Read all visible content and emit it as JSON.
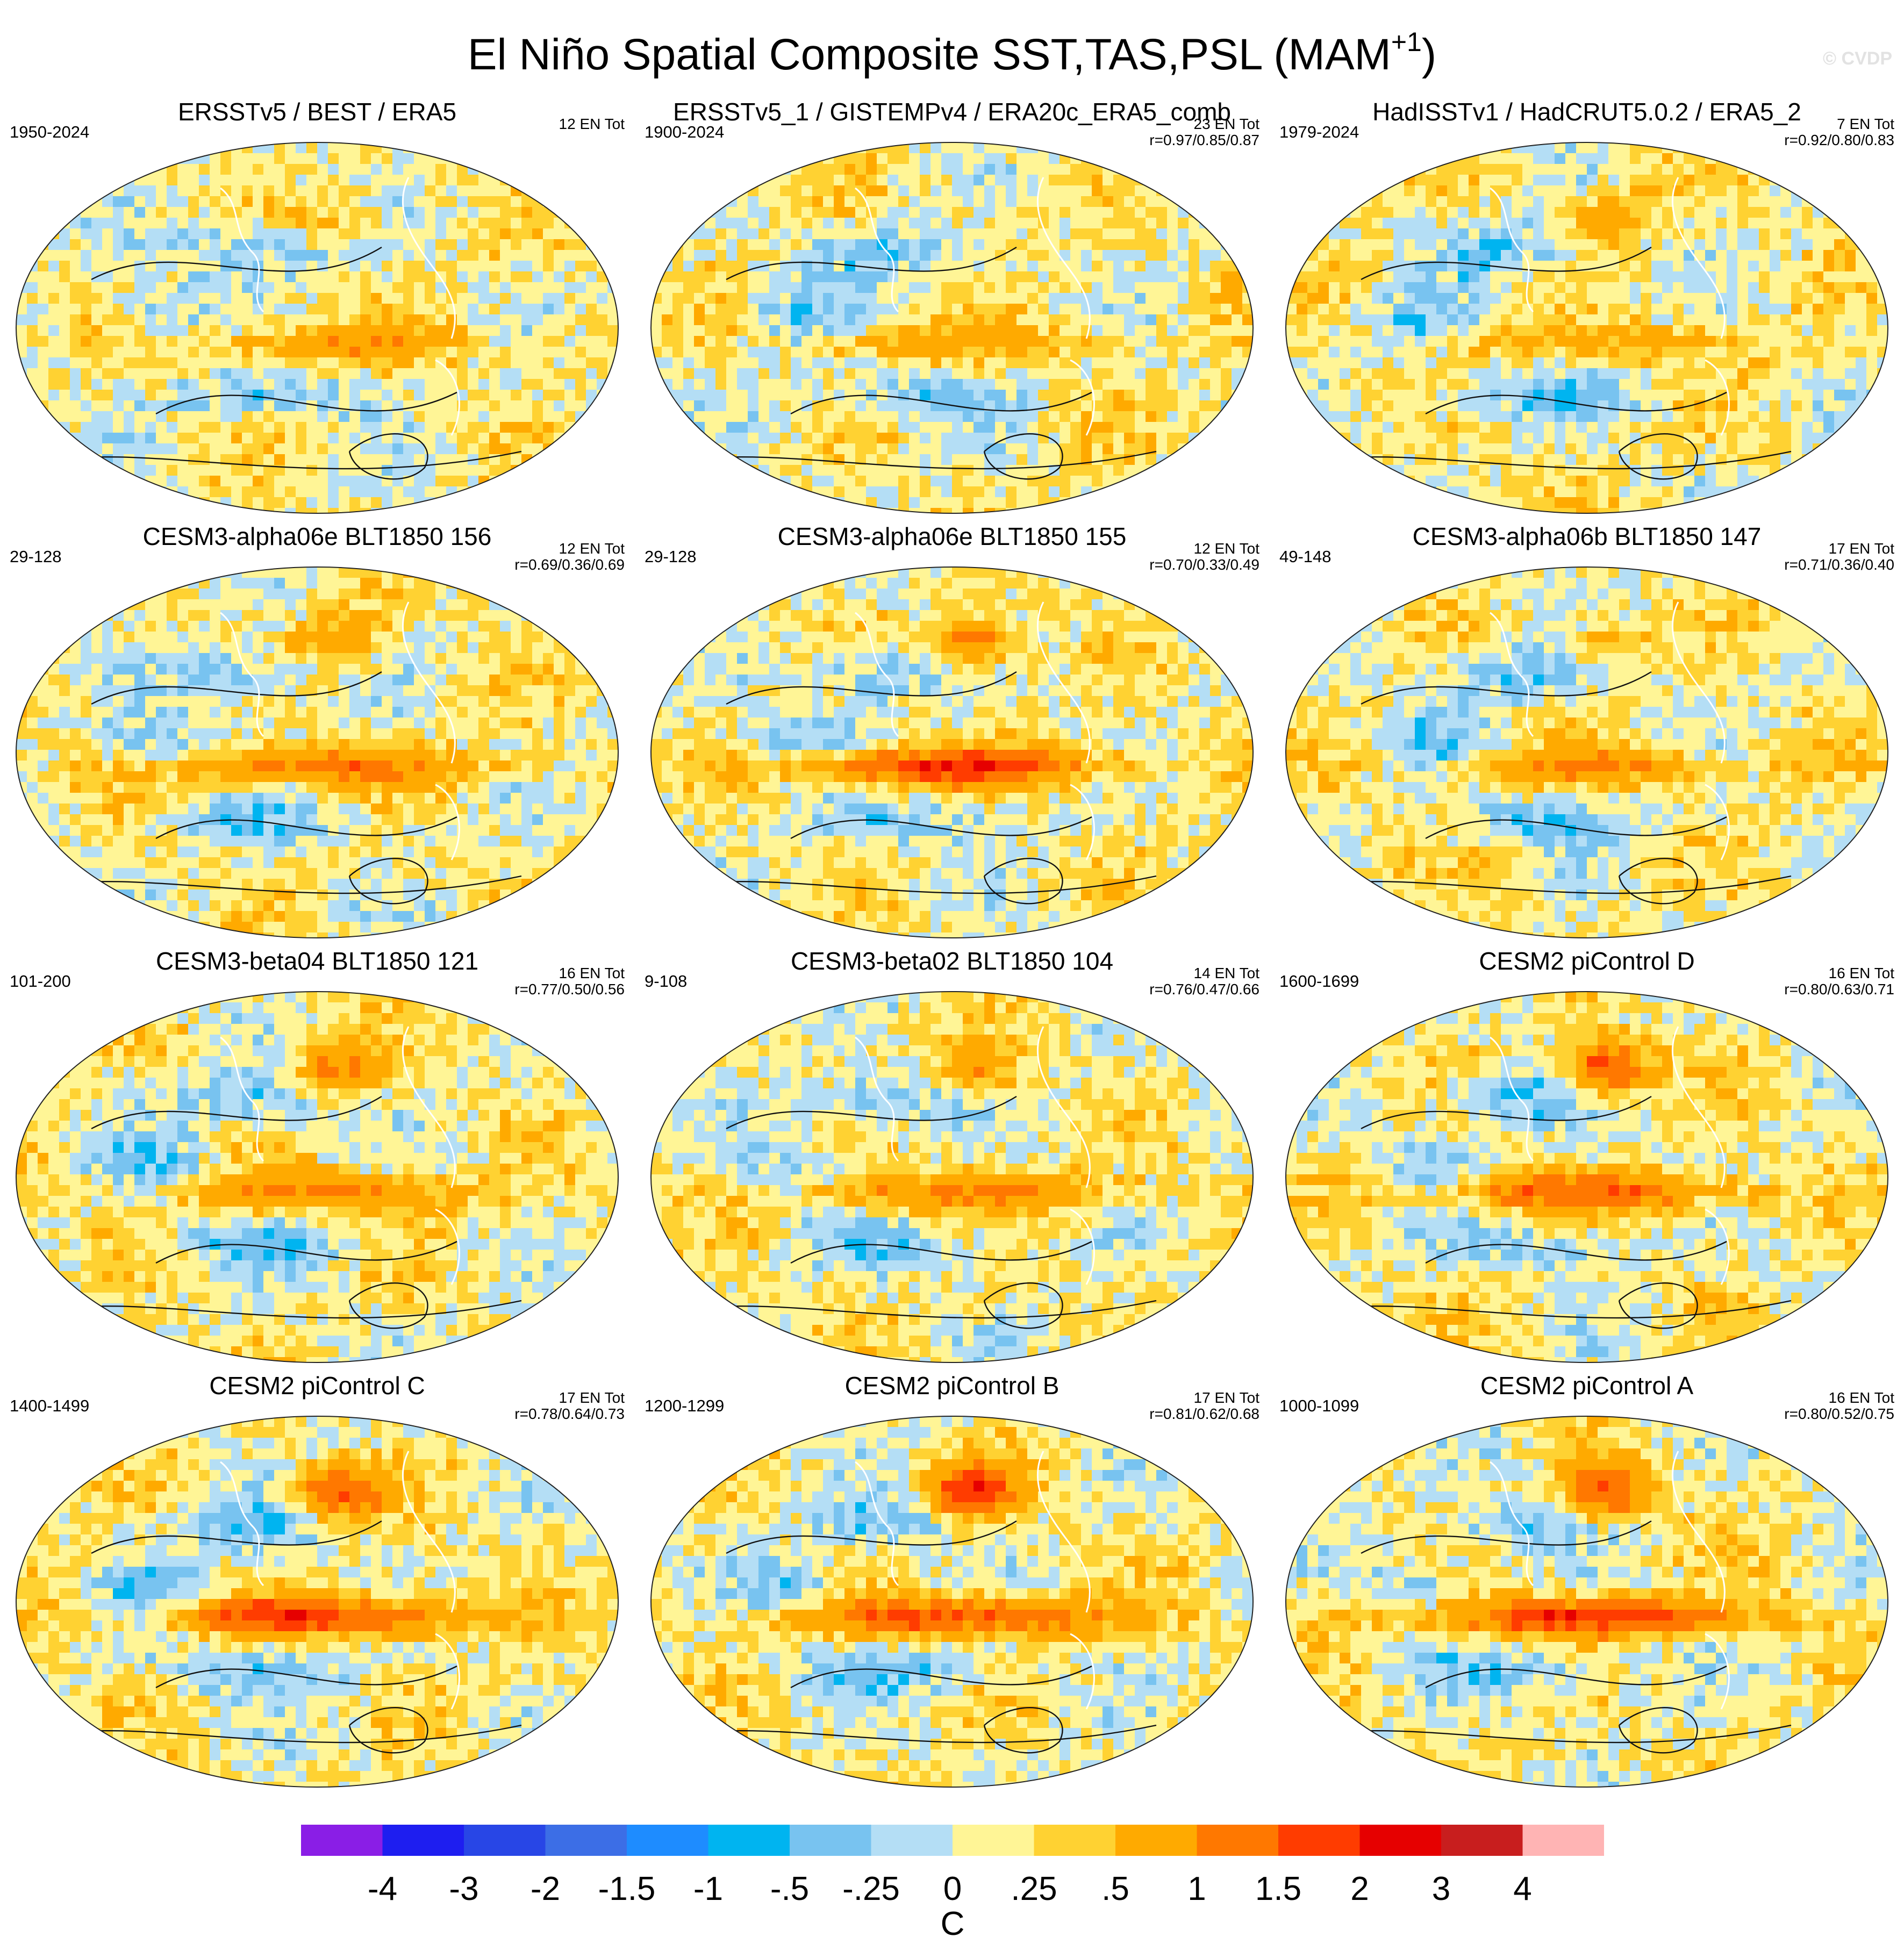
{
  "figure": {
    "title_main": "El Niño Spatial Composite SST,TAS,PSL (MAM",
    "title_sup": "+1",
    "title_close": ")",
    "credit": "© CVDP"
  },
  "panels": [
    {
      "title": "ERSSTv5 / BEST / ERA5",
      "years": "1950-2024",
      "en": "12 EN Tot",
      "corr": ""
    },
    {
      "title": "ERSSTv5_1 / GISTEMPv4 / ERA20c_ERA5_comb",
      "years": "1900-2024",
      "en": "23 EN Tot",
      "corr": "r=0.97/0.85/0.87"
    },
    {
      "title": "HadISSTv1 / HadCRUT5.0.2 / ERA5_2",
      "years": "1979-2024",
      "en": "7 EN Tot",
      "corr": "r=0.92/0.80/0.83"
    },
    {
      "title": "CESM3-alpha06e BLT1850 156",
      "years": "29-128",
      "en": "12 EN Tot",
      "corr": "r=0.69/0.36/0.69"
    },
    {
      "title": "CESM3-alpha06e BLT1850 155",
      "years": "29-128",
      "en": "12 EN Tot",
      "corr": "r=0.70/0.33/0.49"
    },
    {
      "title": "CESM3-alpha06b BLT1850 147",
      "years": "49-148",
      "en": "17 EN Tot",
      "corr": "r=0.71/0.36/0.40"
    },
    {
      "title": "CESM3-beta04 BLT1850 121",
      "years": "101-200",
      "en": "16 EN Tot",
      "corr": "r=0.77/0.50/0.56"
    },
    {
      "title": "CESM3-beta02 BLT1850 104",
      "years": "9-108",
      "en": "14 EN Tot",
      "corr": "r=0.76/0.47/0.66"
    },
    {
      "title": "CESM2 piControl D",
      "years": "1600-1699",
      "en": "16 EN Tot",
      "corr": "r=0.80/0.63/0.71"
    },
    {
      "title": "CESM2 piControl C",
      "years": "1400-1499",
      "en": "17 EN Tot",
      "corr": "r=0.78/0.64/0.73"
    },
    {
      "title": "CESM2 piControl B",
      "years": "1200-1299",
      "en": "17 EN Tot",
      "corr": "r=0.81/0.62/0.68"
    },
    {
      "title": "CESM2 piControl A",
      "years": "1000-1099",
      "en": "16 EN Tot",
      "corr": "r=0.80/0.52/0.75"
    }
  ],
  "chart_data": {
    "type": "heatmap",
    "title": "El Niño Spatial Composite SST,TAS,PSL (MAM+1)",
    "colorbar": {
      "unit": "C",
      "levels": [
        "-4",
        "-3",
        "-2",
        "-1.5",
        "-1",
        "-.5",
        "-.25",
        "0",
        ".25",
        ".5",
        "1",
        "1.5",
        "2",
        "3",
        "4"
      ],
      "level_values": [
        -4,
        -3,
        -2,
        -1.5,
        -1,
        -0.5,
        -0.25,
        0,
        0.25,
        0.5,
        1,
        1.5,
        2,
        3,
        4
      ],
      "colors": [
        "#8a1ee6",
        "#1e1ef0",
        "#2846e6",
        "#3c6ee6",
        "#1e8cff",
        "#00b4f0",
        "#78c3f0",
        "#b4def5",
        "#fff596",
        "#ffd232",
        "#ffaa00",
        "#ff7800",
        "#ff3c00",
        "#e60000",
        "#c81e1e",
        "#ffb4b4"
      ]
    },
    "panel_patterns": [
      {
        "nino": 0.7,
        "npac": 0.6,
        "ninoSign": 1
      },
      {
        "nino": 0.6,
        "npac": 0.3,
        "ninoSign": 1
      },
      {
        "nino": 0.5,
        "npac": 1.1,
        "ninoSign": 1
      },
      {
        "nino": 1.1,
        "npac": 1.2,
        "ninoSign": 1
      },
      {
        "nino": 1.6,
        "npac": 1.8,
        "ninoSign": 1
      },
      {
        "nino": 0.8,
        "npac": 0.9,
        "ninoSign": 1
      },
      {
        "nino": 1.0,
        "npac": 1.6,
        "ninoSign": 1
      },
      {
        "nino": 0.9,
        "npac": 1.4,
        "ninoSign": 1
      },
      {
        "nino": 1.2,
        "npac": 2.6,
        "ninoSign": 1
      },
      {
        "nino": 1.6,
        "npac": 2.4,
        "ninoSign": 1
      },
      {
        "nino": 1.5,
        "npac": 2.8,
        "ninoSign": 1
      },
      {
        "nino": 1.7,
        "npac": 2.4,
        "ninoSign": 1
      }
    ]
  }
}
